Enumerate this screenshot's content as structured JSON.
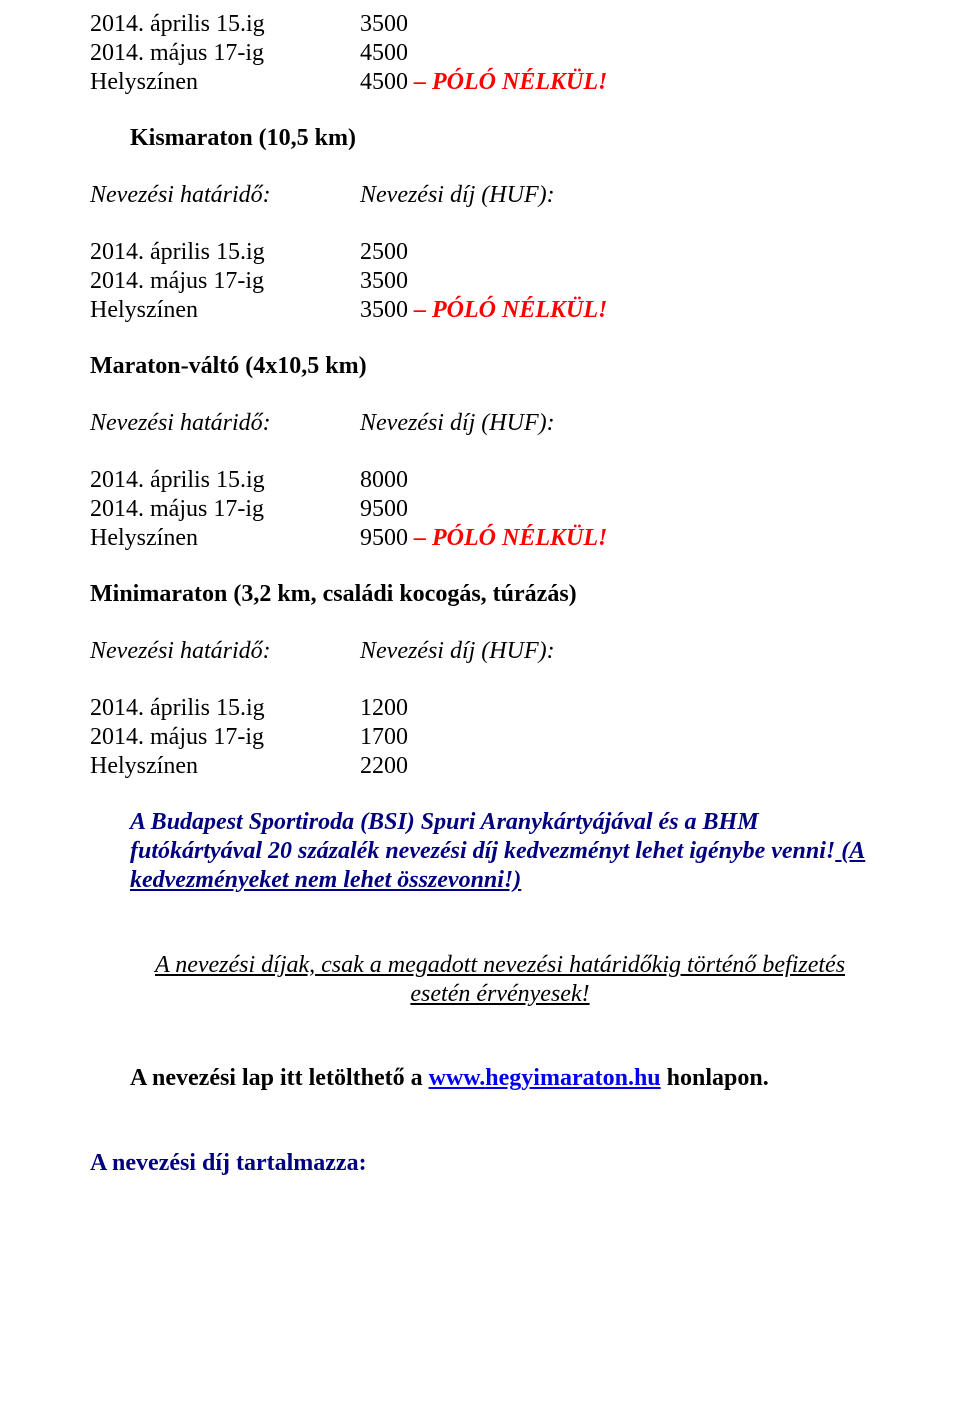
{
  "s1": {
    "r1_left": "2014. április 15.ig",
    "r1_right": "3500",
    "r2_left": "2014. május 17-ig",
    "r2_right": "4500",
    "r3_left": "Helyszínen",
    "r3_right": "4500",
    "r3_note": " – PÓLÓ NÉLKÜL!"
  },
  "s2": {
    "title": "Kismaraton (10,5 km)",
    "h_left": "Nevezési határidő:",
    "h_right": "Nevezési díj (HUF):",
    "r1_left": "2014. április 15.ig",
    "r1_right": "2500",
    "r2_left": "2014. május 17-ig",
    "r2_right": "3500",
    "r3_left": "Helyszínen",
    "r3_right": "3500",
    "r3_note": " – PÓLÓ NÉLKÜL!"
  },
  "s3": {
    "title": "Maraton-váltó (4x10,5 km)",
    "h_left": "Nevezési határidő:",
    "h_right": "Nevezési díj (HUF):",
    "r1_left": "2014. április 15.ig",
    "r1_right": "8000",
    "r2_left": "2014. május 17-ig",
    "r2_right": "9500",
    "r3_left": "Helyszínen",
    "r3_right": "9500",
    "r3_note": " – PÓLÓ NÉLKÜL!"
  },
  "s4": {
    "title": "Minimaraton (3,2 km, családi kocogás, túrázás)",
    "h_left": "Nevezési határidő:",
    "h_right": "Nevezési díj (HUF):",
    "r1_left": "2014. április 15.ig",
    "r1_right": "1200",
    "r2_left": "2014. május 17-ig",
    "r2_right": "1700",
    "r3_left": "Helyszínen",
    "r3_right": "2200"
  },
  "discount": {
    "part1": "A  Budapest Sportiroda (BSI) Spuri Arany",
    "part2": "kártyájával és  a BHM futókártyával 20 százalék nevezési díj kedvezményt lehet igénybe venni!",
    "part3": " (A kedvezményeket nem lehet összevonni!)"
  },
  "validity": "A nevezési díjak, csak a megadott  nevezési határidőkig történő befizetés esetén érvényesek!",
  "download": {
    "pre": "A nevezési lap itt letölthető a ",
    "link1": "www.",
    "link2": "hegyimaraton",
    "link3": ".hu",
    "post": " honlapon."
  },
  "includes": "A nevezési díj tartalmazza:"
}
